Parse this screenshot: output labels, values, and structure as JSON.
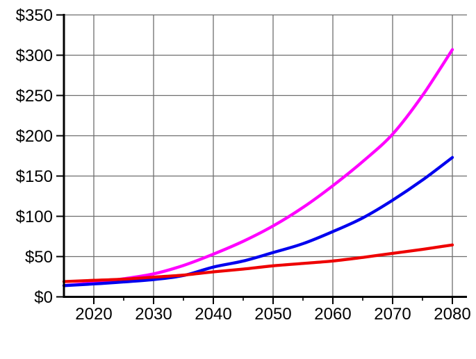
{
  "chart_data": {
    "type": "line",
    "title": "",
    "xlabel": "",
    "ylabel": "",
    "grid": true,
    "legend_position": "none",
    "x_range": [
      2015,
      2082.5
    ],
    "ylim": [
      0,
      350
    ],
    "x": [
      2015,
      2020,
      2025,
      2030,
      2035,
      2040,
      2045,
      2050,
      2055,
      2060,
      2065,
      2070,
      2075,
      2080
    ],
    "series": [
      {
        "name": "magenta-curve-high-growth",
        "color": "#ff00ff",
        "values": [
          14,
          17.5,
          22.5,
          28.5,
          39,
          53,
          69,
          88,
          111,
          138,
          168,
          202,
          250,
          307
        ]
      },
      {
        "name": "blue-curve-medium-growth",
        "color": "#0000ee",
        "values": [
          14,
          16,
          18.5,
          21.5,
          26.5,
          37,
          44.5,
          55,
          66,
          81,
          98,
          120,
          145,
          173
        ]
      },
      {
        "name": "red-curve-low-growth",
        "color": "#ee0000",
        "values": [
          19,
          20.5,
          22,
          24.5,
          27,
          31,
          34.5,
          38.5,
          41.5,
          44.5,
          49,
          54,
          59,
          64.5
        ]
      }
    ],
    "y_ticks": [
      {
        "value": 0,
        "label": "$0"
      },
      {
        "value": 50,
        "label": "$50"
      },
      {
        "value": 100,
        "label": "$100"
      },
      {
        "value": 150,
        "label": "$150"
      },
      {
        "value": 200,
        "label": "$200"
      },
      {
        "value": 250,
        "label": "$250"
      },
      {
        "value": 300,
        "label": "$300"
      },
      {
        "value": 350,
        "label": "$350"
      }
    ],
    "x_ticks_major": [
      {
        "value": 2020,
        "label": "2020"
      },
      {
        "value": 2030,
        "label": "2030"
      },
      {
        "value": 2040,
        "label": "2040"
      },
      {
        "value": 2050,
        "label": "2050"
      },
      {
        "value": 2060,
        "label": "2060"
      },
      {
        "value": 2070,
        "label": "2070"
      },
      {
        "value": 2080,
        "label": "2080"
      }
    ],
    "x_ticks_minor": [
      2025,
      2035,
      2045,
      2055,
      2065,
      2075
    ],
    "colors": {
      "grid": "#6e6e6e",
      "axis": "#000000",
      "background": "#ffffff"
    }
  }
}
